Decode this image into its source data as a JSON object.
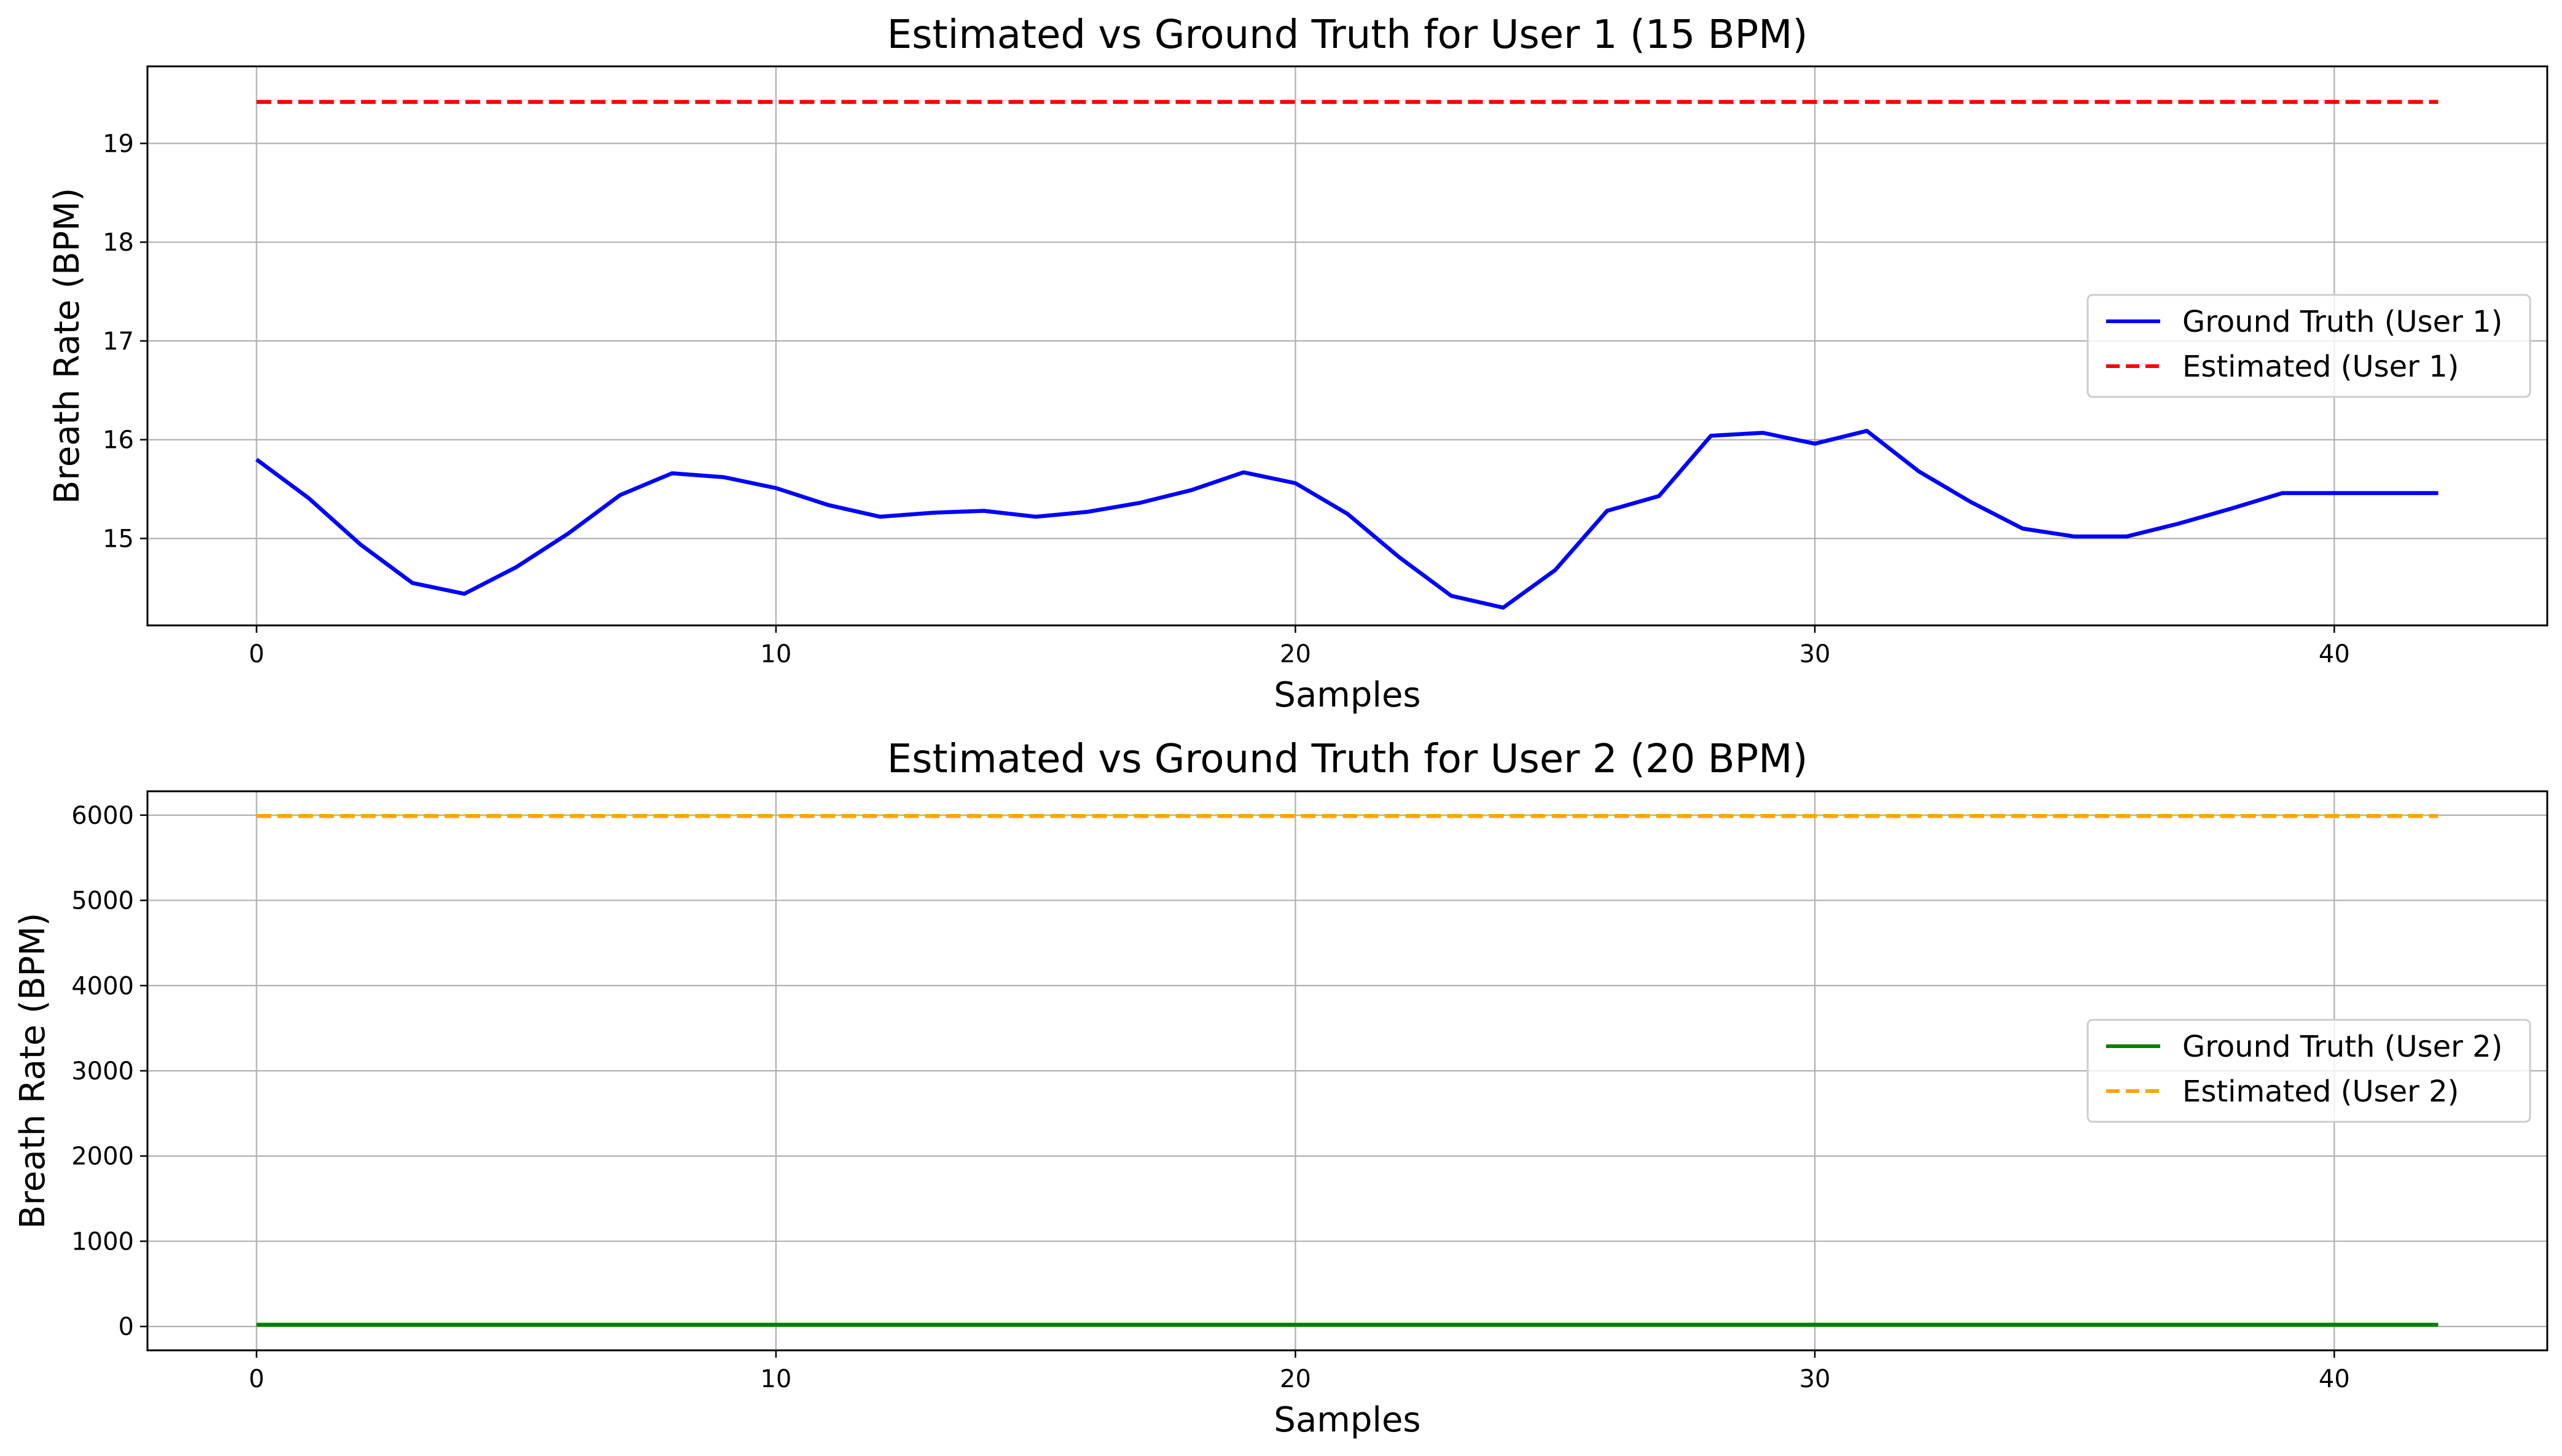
{
  "chart_data": [
    {
      "type": "line",
      "title": "Estimated vs Ground Truth for User 1 (15 BPM)",
      "xlabel": "Samples",
      "ylabel": "Breath Rate (BPM)",
      "xlim": [
        -2.1,
        44.1
      ],
      "ylim": [
        14.12,
        19.78
      ],
      "x_ticks": [
        0,
        10,
        20,
        30,
        40
      ],
      "y_ticks": [
        15,
        16,
        17,
        18,
        19
      ],
      "grid": true,
      "legend_position": "center-right",
      "series": [
        {
          "name": "Ground Truth (User 1)",
          "color": "#0000ff",
          "style": "solid",
          "x": [
            0,
            1,
            2,
            3,
            4,
            5,
            6,
            7,
            8,
            9,
            10,
            11,
            12,
            13,
            14,
            15,
            16,
            17,
            18,
            19,
            20,
            21,
            22,
            23,
            24,
            25,
            26,
            27,
            28,
            29,
            30,
            31,
            32,
            33,
            34,
            35,
            36,
            37,
            38,
            39,
            40,
            41,
            42
          ],
          "values": [
            15.8,
            15.41,
            14.94,
            14.55,
            14.44,
            14.71,
            15.05,
            15.44,
            15.66,
            15.62,
            15.51,
            15.34,
            15.22,
            15.26,
            15.28,
            15.22,
            15.27,
            15.36,
            15.49,
            15.67,
            15.56,
            15.25,
            14.81,
            14.42,
            14.3,
            14.68,
            15.28,
            15.43,
            16.04,
            16.07,
            15.96,
            16.09,
            15.68,
            15.37,
            15.1,
            15.02,
            15.02,
            15.15,
            15.3,
            15.46,
            15.46,
            15.46,
            15.46
          ]
        },
        {
          "name": "Estimated (User 1)",
          "color": "#ff0000",
          "style": "dashed",
          "x": [
            0,
            42
          ],
          "values": [
            19.42,
            19.42
          ]
        }
      ]
    },
    {
      "type": "line",
      "title": "Estimated vs Ground Truth for User 2 (20 BPM)",
      "xlabel": "Samples",
      "ylabel": "Breath Rate (BPM)",
      "xlim": [
        -2.1,
        44.1
      ],
      "ylim": [
        -280,
        6280
      ],
      "x_ticks": [
        0,
        10,
        20,
        30,
        40
      ],
      "y_ticks": [
        0,
        1000,
        2000,
        3000,
        4000,
        5000,
        6000
      ],
      "grid": true,
      "legend_position": "center-right",
      "series": [
        {
          "name": "Ground Truth (User 2)",
          "color": "#008000",
          "style": "solid",
          "x": [
            0,
            42
          ],
          "values": [
            20,
            20
          ]
        },
        {
          "name": "Estimated (User 2)",
          "color": "#ffa500",
          "style": "dashed",
          "x": [
            0,
            42
          ],
          "values": [
            5990,
            5990
          ]
        }
      ]
    }
  ]
}
